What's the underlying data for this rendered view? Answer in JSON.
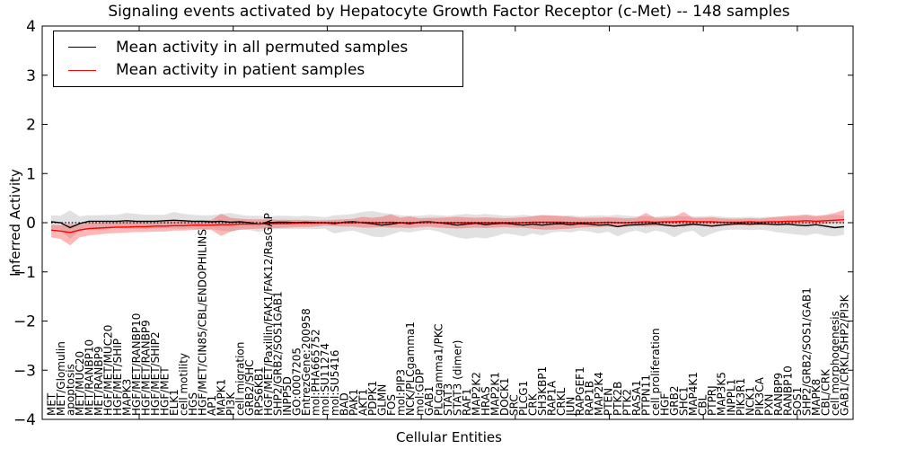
{
  "chart_data": {
    "type": "line",
    "title": "Signaling events activated by Hepatocyte Growth Factor Receptor (c-Met) -- 148 samples",
    "xlabel": "Cellular Entities",
    "ylabel": "Inferred Activity",
    "ylim": [
      -4,
      4
    ],
    "y_tick_labels": [
      "−4",
      "−3",
      "−2",
      "−1",
      "0",
      "1",
      "2",
      "3",
      "4"
    ],
    "grid": false,
    "legend_position": "upper left",
    "zero_line": true,
    "axis_color": "#000000",
    "background_color": "#ffffff",
    "categories": [
      "MET",
      "MET/Glomulin",
      "apoptosis",
      "MET/MUC20",
      "MET/RANBP10",
      "MET/RANBP9",
      "HGF/MET/MUC20",
      "HGF/MET/SHIP",
      "MAPK3",
      "HGF/MET/RANBP10",
      "HGF/MET/RANBP9",
      "HGF/MET/SHIP2",
      "HGF/MET",
      "ELK1",
      "cell motility",
      "HGS",
      "HGF/MET/CIN85/CBL/ENDOPHILINS",
      "AP1",
      "MAPK1",
      "PI3K",
      "cell migration",
      "GRB2/SHC",
      "RPS6KB1",
      "HGF/MET/Paxillin/FAK1/FAK12/RasGAP",
      "SHP2/GRB2/SOS1GAB1",
      "INPP5D",
      "GO:0007205",
      "EntrezGene:200958",
      "mol:PHA665752",
      "mol:SU11274",
      "mol:SU5416",
      "BAD",
      "PAK1",
      "AKT1",
      "PDPK1",
      "GLMN",
      "FOS",
      "mol:PIP3",
      "NCK/PLCgamma1",
      "mol:GDP",
      "GAB1",
      "PLCgamma1/PKC",
      "STAT3",
      "STAT3 (dimer)",
      "RAF1",
      "MAP2K2",
      "HRAS",
      "MAP2K1",
      "DOCK1",
      "SRC",
      "PLCG1",
      "CRK",
      "SH3KBP1",
      "RAP1A",
      "CRKL",
      "JUN",
      "RAPGEF1",
      "RAP1B",
      "MAP2K4",
      "PTEN",
      "PTK2B",
      "PTK2",
      "RASA1",
      "PTPN11",
      "cell proliferation",
      "HGF",
      "GRB2",
      "SHC1",
      "MAP4K1",
      "CBL",
      "PTPRJ",
      "MAP3K5",
      "INPPL1",
      "PIK3R1",
      "NCK1",
      "PIK3CA",
      "PXN",
      "RANBP9",
      "RANBP10",
      "SOS1",
      "SHP2/GRB2/SOS1/GAB1",
      "MAPK8",
      "CBL/CRK",
      "cell morphogenesis",
      "GAB1/CRKL/SHP2/PI3K"
    ],
    "series": [
      {
        "name": "Mean activity in all permuted samples",
        "color": "#000000",
        "band_color": "#aaaaaa",
        "band_opacity": 0.35,
        "values": [
          0.02,
          0.0,
          -0.1,
          -0.02,
          0.03,
          0.03,
          0.03,
          0.03,
          0.04,
          0.03,
          0.03,
          0.03,
          0.04,
          0.05,
          0.04,
          0.03,
          0.03,
          0.02,
          0.03,
          0.01,
          0.02,
          0.0,
          -0.03,
          0.0,
          0.01,
          0.01,
          0.0,
          0.01,
          0.0,
          0.0,
          -0.02,
          0.01,
          0.02,
          0.0,
          -0.02,
          -0.05,
          -0.03,
          0.0,
          -0.02,
          0.01,
          0.02,
          0.0,
          -0.02,
          -0.05,
          -0.03,
          -0.01,
          -0.04,
          -0.02,
          -0.01,
          -0.03,
          -0.05,
          -0.03,
          -0.05,
          -0.03,
          -0.02,
          -0.04,
          -0.02,
          -0.03,
          -0.05,
          -0.04,
          -0.08,
          -0.05,
          -0.04,
          -0.03,
          -0.02,
          -0.05,
          -0.07,
          -0.05,
          -0.03,
          -0.05,
          -0.07,
          -0.05,
          -0.03,
          -0.02,
          -0.03,
          -0.02,
          -0.03,
          -0.04,
          -0.03,
          -0.05,
          -0.06,
          -0.04,
          -0.07,
          -0.1,
          -0.08
        ],
        "band_upper": [
          0.15,
          0.14,
          0.25,
          0.13,
          0.15,
          0.15,
          0.16,
          0.16,
          0.2,
          0.18,
          0.16,
          0.16,
          0.16,
          0.22,
          0.18,
          0.16,
          0.15,
          0.15,
          0.18,
          0.2,
          0.16,
          0.14,
          0.14,
          0.13,
          0.14,
          0.14,
          0.13,
          0.14,
          0.13,
          0.11,
          0.15,
          0.16,
          0.18,
          0.22,
          0.24,
          0.2,
          0.18,
          0.15,
          0.14,
          0.14,
          0.16,
          0.15,
          0.14,
          0.16,
          0.18,
          0.16,
          0.18,
          0.16,
          0.14,
          0.14,
          0.16,
          0.14,
          0.16,
          0.14,
          0.13,
          0.15,
          0.13,
          0.14,
          0.15,
          0.14,
          0.16,
          0.14,
          0.13,
          0.13,
          0.12,
          0.14,
          0.14,
          0.13,
          0.12,
          0.13,
          0.14,
          0.12,
          0.11,
          0.11,
          0.12,
          0.11,
          0.12,
          0.12,
          0.12,
          0.13,
          0.14,
          0.12,
          0.14,
          0.16,
          0.14
        ],
        "band_lower": [
          -0.12,
          -0.14,
          -0.33,
          -0.16,
          -0.12,
          -0.12,
          -0.12,
          -0.11,
          -0.12,
          -0.12,
          -0.12,
          -0.12,
          -0.11,
          -0.12,
          -0.12,
          -0.12,
          -0.13,
          -0.13,
          -0.16,
          -0.18,
          -0.14,
          -0.15,
          -0.19,
          -0.14,
          -0.13,
          -0.13,
          -0.13,
          -0.13,
          -0.13,
          -0.12,
          -0.22,
          -0.18,
          -0.16,
          -0.22,
          -0.28,
          -0.3,
          -0.24,
          -0.18,
          -0.2,
          -0.16,
          -0.14,
          -0.18,
          -0.24,
          -0.3,
          -0.33,
          -0.3,
          -0.32,
          -0.28,
          -0.22,
          -0.24,
          -0.28,
          -0.22,
          -0.26,
          -0.2,
          -0.18,
          -0.2,
          -0.16,
          -0.18,
          -0.22,
          -0.18,
          -0.28,
          -0.2,
          -0.16,
          -0.22,
          -0.16,
          -0.2,
          -0.3,
          -0.2,
          -0.16,
          -0.3,
          -0.22,
          -0.16,
          -0.14,
          -0.14,
          -0.15,
          -0.14,
          -0.16,
          -0.2,
          -0.22,
          -0.24,
          -0.26,
          -0.22,
          -0.26,
          -0.28,
          -0.24
        ]
      },
      {
        "name": "Mean activity in patient samples",
        "color": "#ff0000",
        "band_color": "#ff3333",
        "band_opacity": 0.35,
        "values": [
          -0.15,
          -0.17,
          -0.2,
          -0.15,
          -0.12,
          -0.11,
          -0.1,
          -0.09,
          -0.09,
          -0.08,
          -0.08,
          -0.07,
          -0.07,
          -0.06,
          -0.06,
          -0.05,
          -0.05,
          -0.05,
          -0.04,
          -0.04,
          -0.03,
          -0.03,
          -0.03,
          -0.02,
          -0.02,
          -0.02,
          -0.01,
          -0.01,
          -0.01,
          0.0,
          0.0,
          0.0,
          0.0,
          0.01,
          0.0,
          0.0,
          0.01,
          0.0,
          0.0,
          0.0,
          0.01,
          0.0,
          0.0,
          0.0,
          0.0,
          0.0,
          0.0,
          0.0,
          0.0,
          0.0,
          0.0,
          0.01,
          0.01,
          0.01,
          0.01,
          0.0,
          0.0,
          0.0,
          0.0,
          0.01,
          0.0,
          0.0,
          0.01,
          0.02,
          0.01,
          0.02,
          0.02,
          0.03,
          0.02,
          0.02,
          0.02,
          0.01,
          0.01,
          0.01,
          0.02,
          0.01,
          0.02,
          0.02,
          0.03,
          0.03,
          0.04,
          0.03,
          0.04,
          0.05,
          0.06
        ],
        "band_upper": [
          -0.04,
          -0.05,
          -0.02,
          -0.04,
          0.0,
          0.0,
          0.01,
          0.02,
          0.02,
          0.03,
          0.03,
          0.04,
          0.04,
          0.05,
          0.05,
          0.04,
          0.05,
          0.06,
          0.18,
          0.1,
          0.08,
          0.07,
          0.07,
          0.07,
          0.06,
          0.06,
          0.06,
          0.05,
          0.05,
          0.05,
          0.06,
          0.07,
          0.08,
          0.12,
          0.1,
          0.12,
          0.17,
          0.1,
          0.13,
          0.09,
          0.1,
          0.1,
          0.11,
          0.12,
          0.11,
          0.1,
          0.11,
          0.1,
          0.09,
          0.1,
          0.11,
          0.13,
          0.15,
          0.15,
          0.14,
          0.12,
          0.1,
          0.1,
          0.1,
          0.11,
          0.1,
          0.09,
          0.1,
          0.2,
          0.1,
          0.1,
          0.12,
          0.22,
          0.1,
          0.1,
          0.11,
          0.09,
          0.08,
          0.08,
          0.09,
          0.08,
          0.1,
          0.12,
          0.14,
          0.15,
          0.17,
          0.14,
          0.16,
          0.2,
          0.26
        ],
        "band_lower": [
          -0.3,
          -0.33,
          -0.46,
          -0.3,
          -0.26,
          -0.24,
          -0.22,
          -0.21,
          -0.2,
          -0.19,
          -0.19,
          -0.18,
          -0.18,
          -0.16,
          -0.16,
          -0.15,
          -0.14,
          -0.15,
          -0.27,
          -0.18,
          -0.14,
          -0.13,
          -0.12,
          -0.11,
          -0.11,
          -0.1,
          -0.09,
          -0.09,
          -0.08,
          -0.06,
          -0.07,
          -0.08,
          -0.08,
          -0.1,
          -0.1,
          -0.09,
          -0.1,
          -0.1,
          -0.11,
          -0.09,
          -0.08,
          -0.1,
          -0.11,
          -0.12,
          -0.11,
          -0.1,
          -0.11,
          -0.1,
          -0.09,
          -0.1,
          -0.1,
          -0.12,
          -0.14,
          -0.14,
          -0.13,
          -0.12,
          -0.1,
          -0.09,
          -0.09,
          -0.08,
          -0.09,
          -0.08,
          -0.07,
          -0.08,
          -0.07,
          -0.06,
          -0.07,
          -0.08,
          -0.06,
          -0.06,
          -0.06,
          -0.06,
          -0.06,
          -0.05,
          -0.06,
          -0.05,
          -0.05,
          -0.04,
          -0.04,
          -0.03,
          -0.02,
          -0.03,
          -0.02,
          0.0,
          -0.01
        ]
      }
    ]
  }
}
